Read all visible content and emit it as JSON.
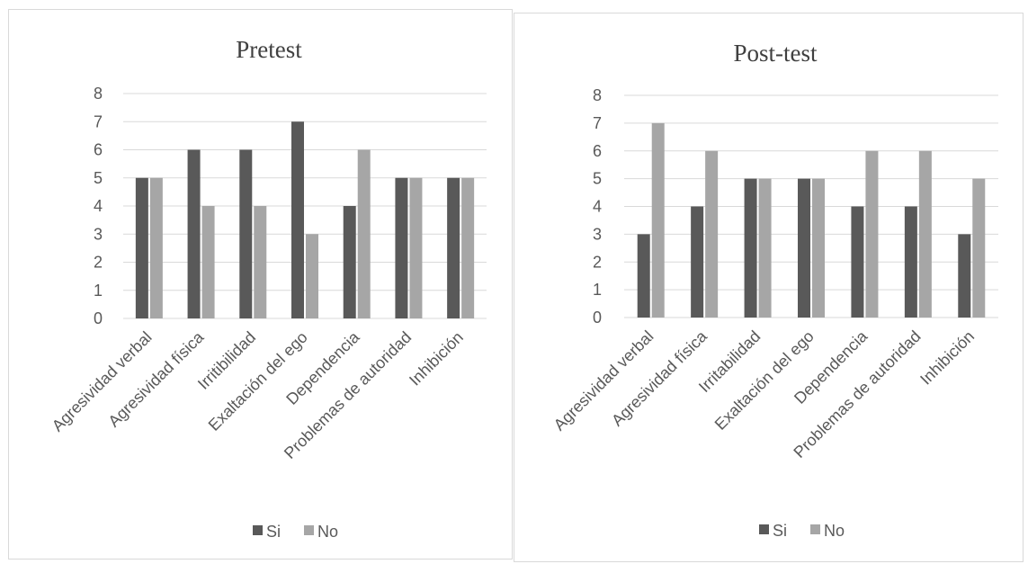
{
  "chart_data": [
    {
      "type": "bar",
      "title": "Pretest",
      "categories": [
        "Agresividad verbal",
        "Agresividad física",
        "Irritibilidad",
        "Exaltación del ego",
        "Dependencia",
        "Problemas de autoridad",
        "Inhibición"
      ],
      "series": [
        {
          "name": "Si",
          "values": [
            5,
            6,
            6,
            7,
            4,
            5,
            5
          ],
          "color": "#595959"
        },
        {
          "name": "No",
          "values": [
            5,
            4,
            4,
            3,
            6,
            5,
            5
          ],
          "color": "#a6a6a6"
        }
      ],
      "ylim": [
        0,
        8
      ],
      "yticks": [
        "0",
        "1",
        "2",
        "3",
        "4",
        "5",
        "6",
        "7",
        "8"
      ],
      "grid": true,
      "legend_position": "bottom"
    },
    {
      "type": "bar",
      "title": "Post-test",
      "categories": [
        "Agresividad verbal",
        "Agresividad física",
        "Irritabilidad",
        "Exaltación del ego",
        "Dependencia",
        "Problemas de autoridad",
        "Inhibición"
      ],
      "series": [
        {
          "name": "Si",
          "values": [
            3,
            4,
            5,
            5,
            4,
            4,
            3
          ],
          "color": "#595959"
        },
        {
          "name": "No",
          "values": [
            7,
            6,
            5,
            5,
            6,
            6,
            5
          ],
          "color": "#a6a6a6"
        }
      ],
      "ylim": [
        0,
        8
      ],
      "yticks": [
        "0",
        "1",
        "2",
        "3",
        "4",
        "5",
        "6",
        "7",
        "8"
      ],
      "grid": true,
      "legend_position": "bottom"
    }
  ]
}
